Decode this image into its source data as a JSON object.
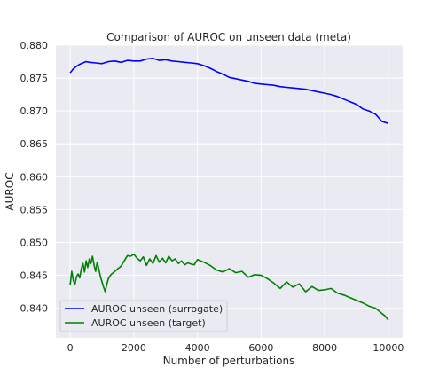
{
  "chart_data": {
    "type": "line",
    "title": "Comparison of AUROC on unseen data (meta)",
    "xlabel": "Number of perturbations",
    "ylabel": "AUROC",
    "xlim": [
      -450,
      10450
    ],
    "ylim": [
      0.8355,
      0.88
    ],
    "xticks": [
      0,
      2000,
      4000,
      6000,
      8000,
      10000
    ],
    "yticks": [
      0.84,
      0.845,
      0.85,
      0.855,
      0.86,
      0.865,
      0.87,
      0.875,
      0.88
    ],
    "xtick_labels": [
      "0",
      "2000",
      "4000",
      "6000",
      "8000",
      "10000"
    ],
    "ytick_labels": [
      "0.840",
      "0.845",
      "0.850",
      "0.855",
      "0.860",
      "0.865",
      "0.870",
      "0.875",
      "0.880"
    ],
    "grid": true,
    "legend_position": "lower-left",
    "series": [
      {
        "name": "AUROC unseen (surrogate)",
        "color": "#0000ff",
        "x": [
          0,
          100,
          200,
          300,
          400,
          500,
          600,
          800,
          1000,
          1200,
          1400,
          1600,
          1800,
          2000,
          2200,
          2400,
          2600,
          2800,
          3000,
          3200,
          3400,
          3600,
          3800,
          4000,
          4200,
          4400,
          4600,
          4800,
          5000,
          5200,
          5400,
          5600,
          5800,
          6000,
          6200,
          6400,
          6600,
          6800,
          7000,
          7200,
          7400,
          7600,
          7800,
          8000,
          8200,
          8400,
          8600,
          8800,
          9000,
          9200,
          9400,
          9600,
          9800,
          10000
        ],
        "y": [
          0.8758,
          0.8764,
          0.8768,
          0.8771,
          0.8773,
          0.8775,
          0.8774,
          0.8773,
          0.8772,
          0.8775,
          0.8776,
          0.8774,
          0.8777,
          0.8776,
          0.8776,
          0.8779,
          0.878,
          0.8777,
          0.8778,
          0.8776,
          0.8775,
          0.8774,
          0.8773,
          0.8772,
          0.8769,
          0.8765,
          0.876,
          0.8756,
          0.8751,
          0.8749,
          0.8747,
          0.8745,
          0.8742,
          0.8741,
          0.874,
          0.8739,
          0.8737,
          0.8736,
          0.8735,
          0.8734,
          0.8733,
          0.8731,
          0.8729,
          0.8727,
          0.8725,
          0.8722,
          0.8718,
          0.8714,
          0.871,
          0.8703,
          0.87,
          0.8695,
          0.8684,
          0.8681
        ]
      },
      {
        "name": "AUROC unseen (target)",
        "color": "#008000",
        "x": [
          0,
          50,
          100,
          150,
          200,
          250,
          300,
          350,
          400,
          450,
          500,
          550,
          600,
          650,
          700,
          750,
          800,
          850,
          900,
          950,
          1000,
          1050,
          1100,
          1150,
          1200,
          1250,
          1300,
          1400,
          1500,
          1600,
          1700,
          1800,
          1900,
          2000,
          2100,
          2200,
          2300,
          2400,
          2500,
          2600,
          2700,
          2800,
          2900,
          3000,
          3100,
          3200,
          3300,
          3400,
          3500,
          3600,
          3700,
          3800,
          3900,
          4000,
          4200,
          4400,
          4600,
          4800,
          5000,
          5200,
          5400,
          5600,
          5800,
          6000,
          6200,
          6400,
          6600,
          6800,
          7000,
          7200,
          7400,
          7600,
          7800,
          8000,
          8200,
          8400,
          8600,
          8800,
          9000,
          9200,
          9400,
          9600,
          9800,
          9900,
          10000
        ],
        "y": [
          0.8435,
          0.8456,
          0.8442,
          0.8436,
          0.8448,
          0.8452,
          0.8446,
          0.846,
          0.8468,
          0.8455,
          0.8472,
          0.8462,
          0.8475,
          0.8468,
          0.8479,
          0.8466,
          0.8456,
          0.847,
          0.846,
          0.8448,
          0.844,
          0.8432,
          0.8425,
          0.8436,
          0.8445,
          0.8449,
          0.8452,
          0.8456,
          0.846,
          0.8464,
          0.8472,
          0.848,
          0.8479,
          0.8482,
          0.8476,
          0.8472,
          0.8478,
          0.8465,
          0.8475,
          0.8468,
          0.848,
          0.847,
          0.8476,
          0.8469,
          0.8479,
          0.8472,
          0.8475,
          0.8468,
          0.8472,
          0.8466,
          0.8469,
          0.8467,
          0.8466,
          0.8474,
          0.847,
          0.8465,
          0.8458,
          0.8455,
          0.846,
          0.8454,
          0.8456,
          0.8447,
          0.8451,
          0.845,
          0.8445,
          0.8438,
          0.843,
          0.844,
          0.8432,
          0.8437,
          0.8425,
          0.8433,
          0.8427,
          0.8428,
          0.843,
          0.8423,
          0.842,
          0.8416,
          0.8412,
          0.8408,
          0.8403,
          0.84,
          0.8392,
          0.8388,
          0.8382
        ]
      }
    ]
  }
}
